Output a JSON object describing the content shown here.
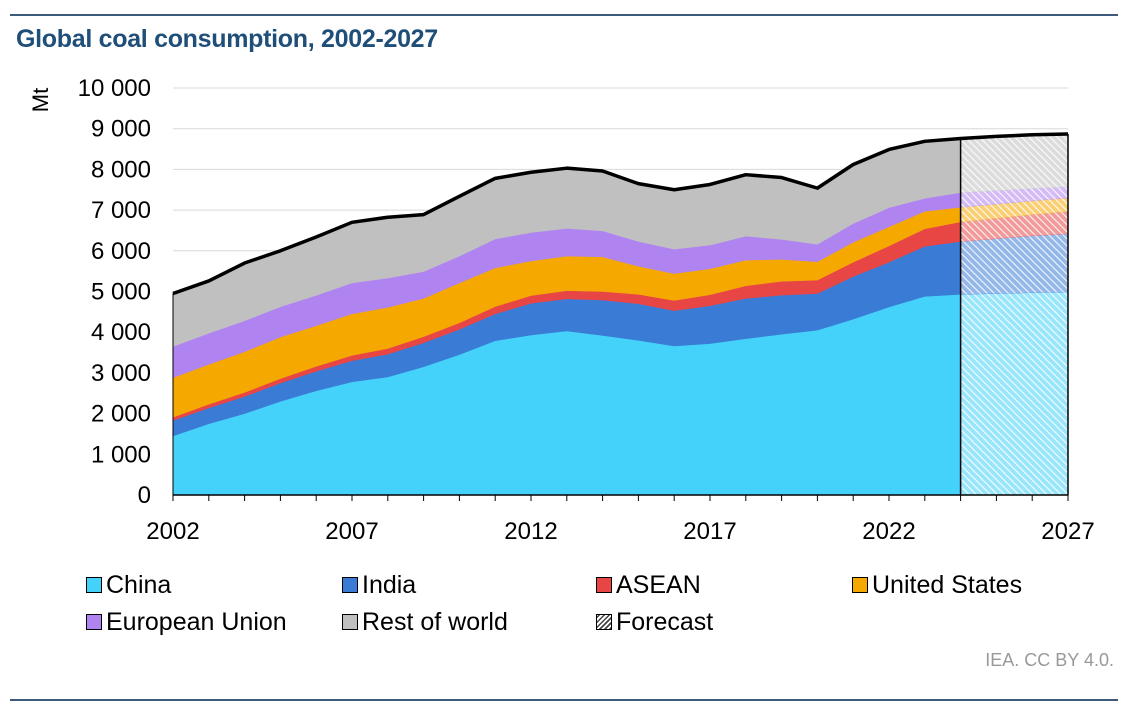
{
  "header": {
    "title": "Global coal consumption, 2002-2027"
  },
  "source": "IEA. CC BY 4.0.",
  "colors": {
    "China": "#45d2fa",
    "India": "#3a7bd5",
    "ASEAN": "#e84545",
    "United States": "#f5a800",
    "European Union": "#b084f0",
    "Rest of world": "#c0c0c0",
    "outline": "#000000",
    "grid": "#d9d9d9"
  },
  "chart_data": {
    "type": "area",
    "stacked": true,
    "title": "Global coal consumption, 2002-2027",
    "ylabel": "Mt",
    "xlabel": "",
    "ylim": [
      0,
      10000
    ],
    "yticks": [
      "0",
      "1 000",
      "2 000",
      "3 000",
      "4 000",
      "5 000",
      "6 000",
      "7 000",
      "8 000",
      "9 000",
      "10 000"
    ],
    "ytick_values": [
      0,
      1000,
      2000,
      3000,
      4000,
      5000,
      6000,
      7000,
      8000,
      9000,
      10000
    ],
    "xticks": [
      "2002",
      "2007",
      "2012",
      "2017",
      "2022",
      "2027"
    ],
    "x": [
      2002,
      2003,
      2004,
      2005,
      2006,
      2007,
      2008,
      2009,
      2010,
      2011,
      2012,
      2013,
      2014,
      2015,
      2016,
      2017,
      2018,
      2019,
      2020,
      2021,
      2022,
      2023,
      2024,
      2025,
      2026,
      2027
    ],
    "forecast_start": 2024,
    "series": [
      {
        "name": "China",
        "values": [
          1450,
          1750,
          2000,
          2300,
          2560,
          2780,
          2900,
          3150,
          3450,
          3790,
          3930,
          4030,
          3920,
          3800,
          3660,
          3720,
          3840,
          3950,
          4050,
          4320,
          4620,
          4880,
          4930,
          4950,
          4970,
          4990
        ]
      },
      {
        "name": "India",
        "values": [
          380,
          390,
          420,
          450,
          480,
          520,
          560,
          590,
          620,
          660,
          780,
          790,
          870,
          900,
          870,
          930,
          990,
          960,
          900,
          1050,
          1100,
          1230,
          1300,
          1350,
          1400,
          1430
        ]
      },
      {
        "name": "ASEAN",
        "values": [
          80,
          90,
          100,
          110,
          120,
          130,
          140,
          150,
          160,
          180,
          190,
          200,
          210,
          230,
          250,
          270,
          310,
          340,
          330,
          350,
          400,
          430,
          480,
          500,
          520,
          550
        ]
      },
      {
        "name": "United States",
        "values": [
          970,
          980,
          1000,
          1020,
          1000,
          1020,
          1010,
          940,
          980,
          950,
          850,
          850,
          850,
          690,
          660,
          640,
          630,
          540,
          450,
          490,
          470,
          430,
          360,
          350,
          340,
          330
        ]
      },
      {
        "name": "European Union",
        "values": [
          770,
          765,
          760,
          745,
          745,
          760,
          720,
          660,
          660,
          710,
          700,
          680,
          640,
          610,
          600,
          580,
          590,
          490,
          430,
          460,
          470,
          320,
          360,
          330,
          300,
          270
        ]
      },
      {
        "name": "Rest of world",
        "values": [
          1300,
          1285,
          1420,
          1375,
          1435,
          1490,
          1495,
          1400,
          1470,
          1490,
          1480,
          1480,
          1470,
          1420,
          1460,
          1490,
          1510,
          1520,
          1380,
          1450,
          1430,
          1400,
          1330,
          1330,
          1320,
          1300
        ]
      }
    ],
    "legend": [
      {
        "label": "China",
        "key": "China"
      },
      {
        "label": "India",
        "key": "India"
      },
      {
        "label": "ASEAN",
        "key": "ASEAN"
      },
      {
        "label": "United States",
        "key": "United States"
      },
      {
        "label": "European Union",
        "key": "European Union"
      },
      {
        "label": "Rest of world",
        "key": "Rest of world"
      },
      {
        "label": "Forecast",
        "key": "Forecast"
      }
    ],
    "legend_position": "bottom",
    "grid": true
  }
}
